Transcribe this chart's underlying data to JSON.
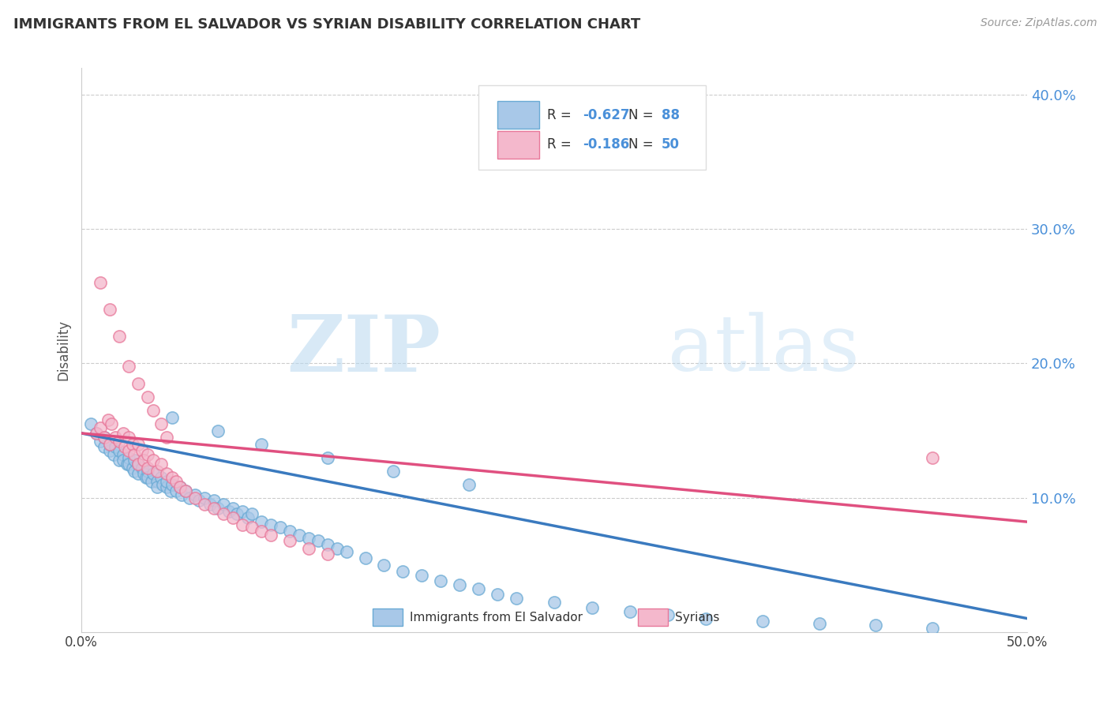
{
  "title": "IMMIGRANTS FROM EL SALVADOR VS SYRIAN DISABILITY CORRELATION CHART",
  "source": "Source: ZipAtlas.com",
  "ylabel": "Disability",
  "xlim": [
    0.0,
    0.5
  ],
  "ylim": [
    0.0,
    0.42
  ],
  "yticks": [
    0.1,
    0.2,
    0.3,
    0.4
  ],
  "ytick_labels": [
    "10.0%",
    "20.0%",
    "30.0%",
    "40.0%"
  ],
  "blue_color": "#a8c8e8",
  "pink_color": "#f4b8cc",
  "blue_edge_color": "#6aaad4",
  "pink_edge_color": "#e8789a",
  "blue_line_color": "#3a7abf",
  "pink_line_color": "#e05080",
  "watermark_zip": "ZIP",
  "watermark_atlas": "atlas",
  "blue_scatter_x": [
    0.005,
    0.008,
    0.01,
    0.012,
    0.012,
    0.015,
    0.015,
    0.017,
    0.018,
    0.02,
    0.02,
    0.022,
    0.022,
    0.024,
    0.025,
    0.025,
    0.027,
    0.028,
    0.028,
    0.03,
    0.03,
    0.032,
    0.033,
    0.034,
    0.035,
    0.035,
    0.037,
    0.038,
    0.04,
    0.04,
    0.042,
    0.043,
    0.045,
    0.045,
    0.047,
    0.048,
    0.05,
    0.052,
    0.053,
    0.055,
    0.057,
    0.06,
    0.062,
    0.065,
    0.068,
    0.07,
    0.072,
    0.075,
    0.078,
    0.08,
    0.082,
    0.085,
    0.088,
    0.09,
    0.095,
    0.1,
    0.105,
    0.11,
    0.115,
    0.12,
    0.125,
    0.13,
    0.135,
    0.14,
    0.15,
    0.16,
    0.17,
    0.18,
    0.19,
    0.2,
    0.21,
    0.22,
    0.23,
    0.25,
    0.27,
    0.29,
    0.31,
    0.33,
    0.36,
    0.39,
    0.42,
    0.45,
    0.048,
    0.072,
    0.095,
    0.13,
    0.165,
    0.205
  ],
  "blue_scatter_y": [
    0.155,
    0.148,
    0.142,
    0.138,
    0.145,
    0.135,
    0.14,
    0.132,
    0.138,
    0.128,
    0.135,
    0.132,
    0.128,
    0.125,
    0.13,
    0.125,
    0.122,
    0.128,
    0.12,
    0.125,
    0.118,
    0.122,
    0.118,
    0.115,
    0.12,
    0.115,
    0.112,
    0.118,
    0.112,
    0.108,
    0.115,
    0.11,
    0.108,
    0.112,
    0.105,
    0.11,
    0.105,
    0.108,
    0.102,
    0.105,
    0.1,
    0.102,
    0.098,
    0.1,
    0.095,
    0.098,
    0.092,
    0.095,
    0.09,
    0.092,
    0.088,
    0.09,
    0.085,
    0.088,
    0.082,
    0.08,
    0.078,
    0.075,
    0.072,
    0.07,
    0.068,
    0.065,
    0.062,
    0.06,
    0.055,
    0.05,
    0.045,
    0.042,
    0.038,
    0.035,
    0.032,
    0.028,
    0.025,
    0.022,
    0.018,
    0.015,
    0.013,
    0.01,
    0.008,
    0.006,
    0.005,
    0.003,
    0.16,
    0.15,
    0.14,
    0.13,
    0.12,
    0.11
  ],
  "pink_scatter_x": [
    0.008,
    0.01,
    0.012,
    0.014,
    0.015,
    0.016,
    0.018,
    0.02,
    0.022,
    0.023,
    0.025,
    0.025,
    0.027,
    0.028,
    0.03,
    0.03,
    0.032,
    0.033,
    0.035,
    0.035,
    0.038,
    0.04,
    0.042,
    0.045,
    0.048,
    0.05,
    0.052,
    0.055,
    0.06,
    0.065,
    0.07,
    0.075,
    0.08,
    0.085,
    0.09,
    0.095,
    0.1,
    0.11,
    0.12,
    0.13,
    0.01,
    0.015,
    0.02,
    0.025,
    0.03,
    0.035,
    0.038,
    0.042,
    0.045,
    0.45
  ],
  "pink_scatter_y": [
    0.148,
    0.152,
    0.145,
    0.158,
    0.14,
    0.155,
    0.145,
    0.142,
    0.148,
    0.138,
    0.145,
    0.135,
    0.14,
    0.132,
    0.14,
    0.125,
    0.135,
    0.128,
    0.132,
    0.122,
    0.128,
    0.12,
    0.125,
    0.118,
    0.115,
    0.112,
    0.108,
    0.105,
    0.1,
    0.095,
    0.092,
    0.088,
    0.085,
    0.08,
    0.078,
    0.075,
    0.072,
    0.068,
    0.062,
    0.058,
    0.26,
    0.24,
    0.22,
    0.198,
    0.185,
    0.175,
    0.165,
    0.155,
    0.145,
    0.13
  ]
}
